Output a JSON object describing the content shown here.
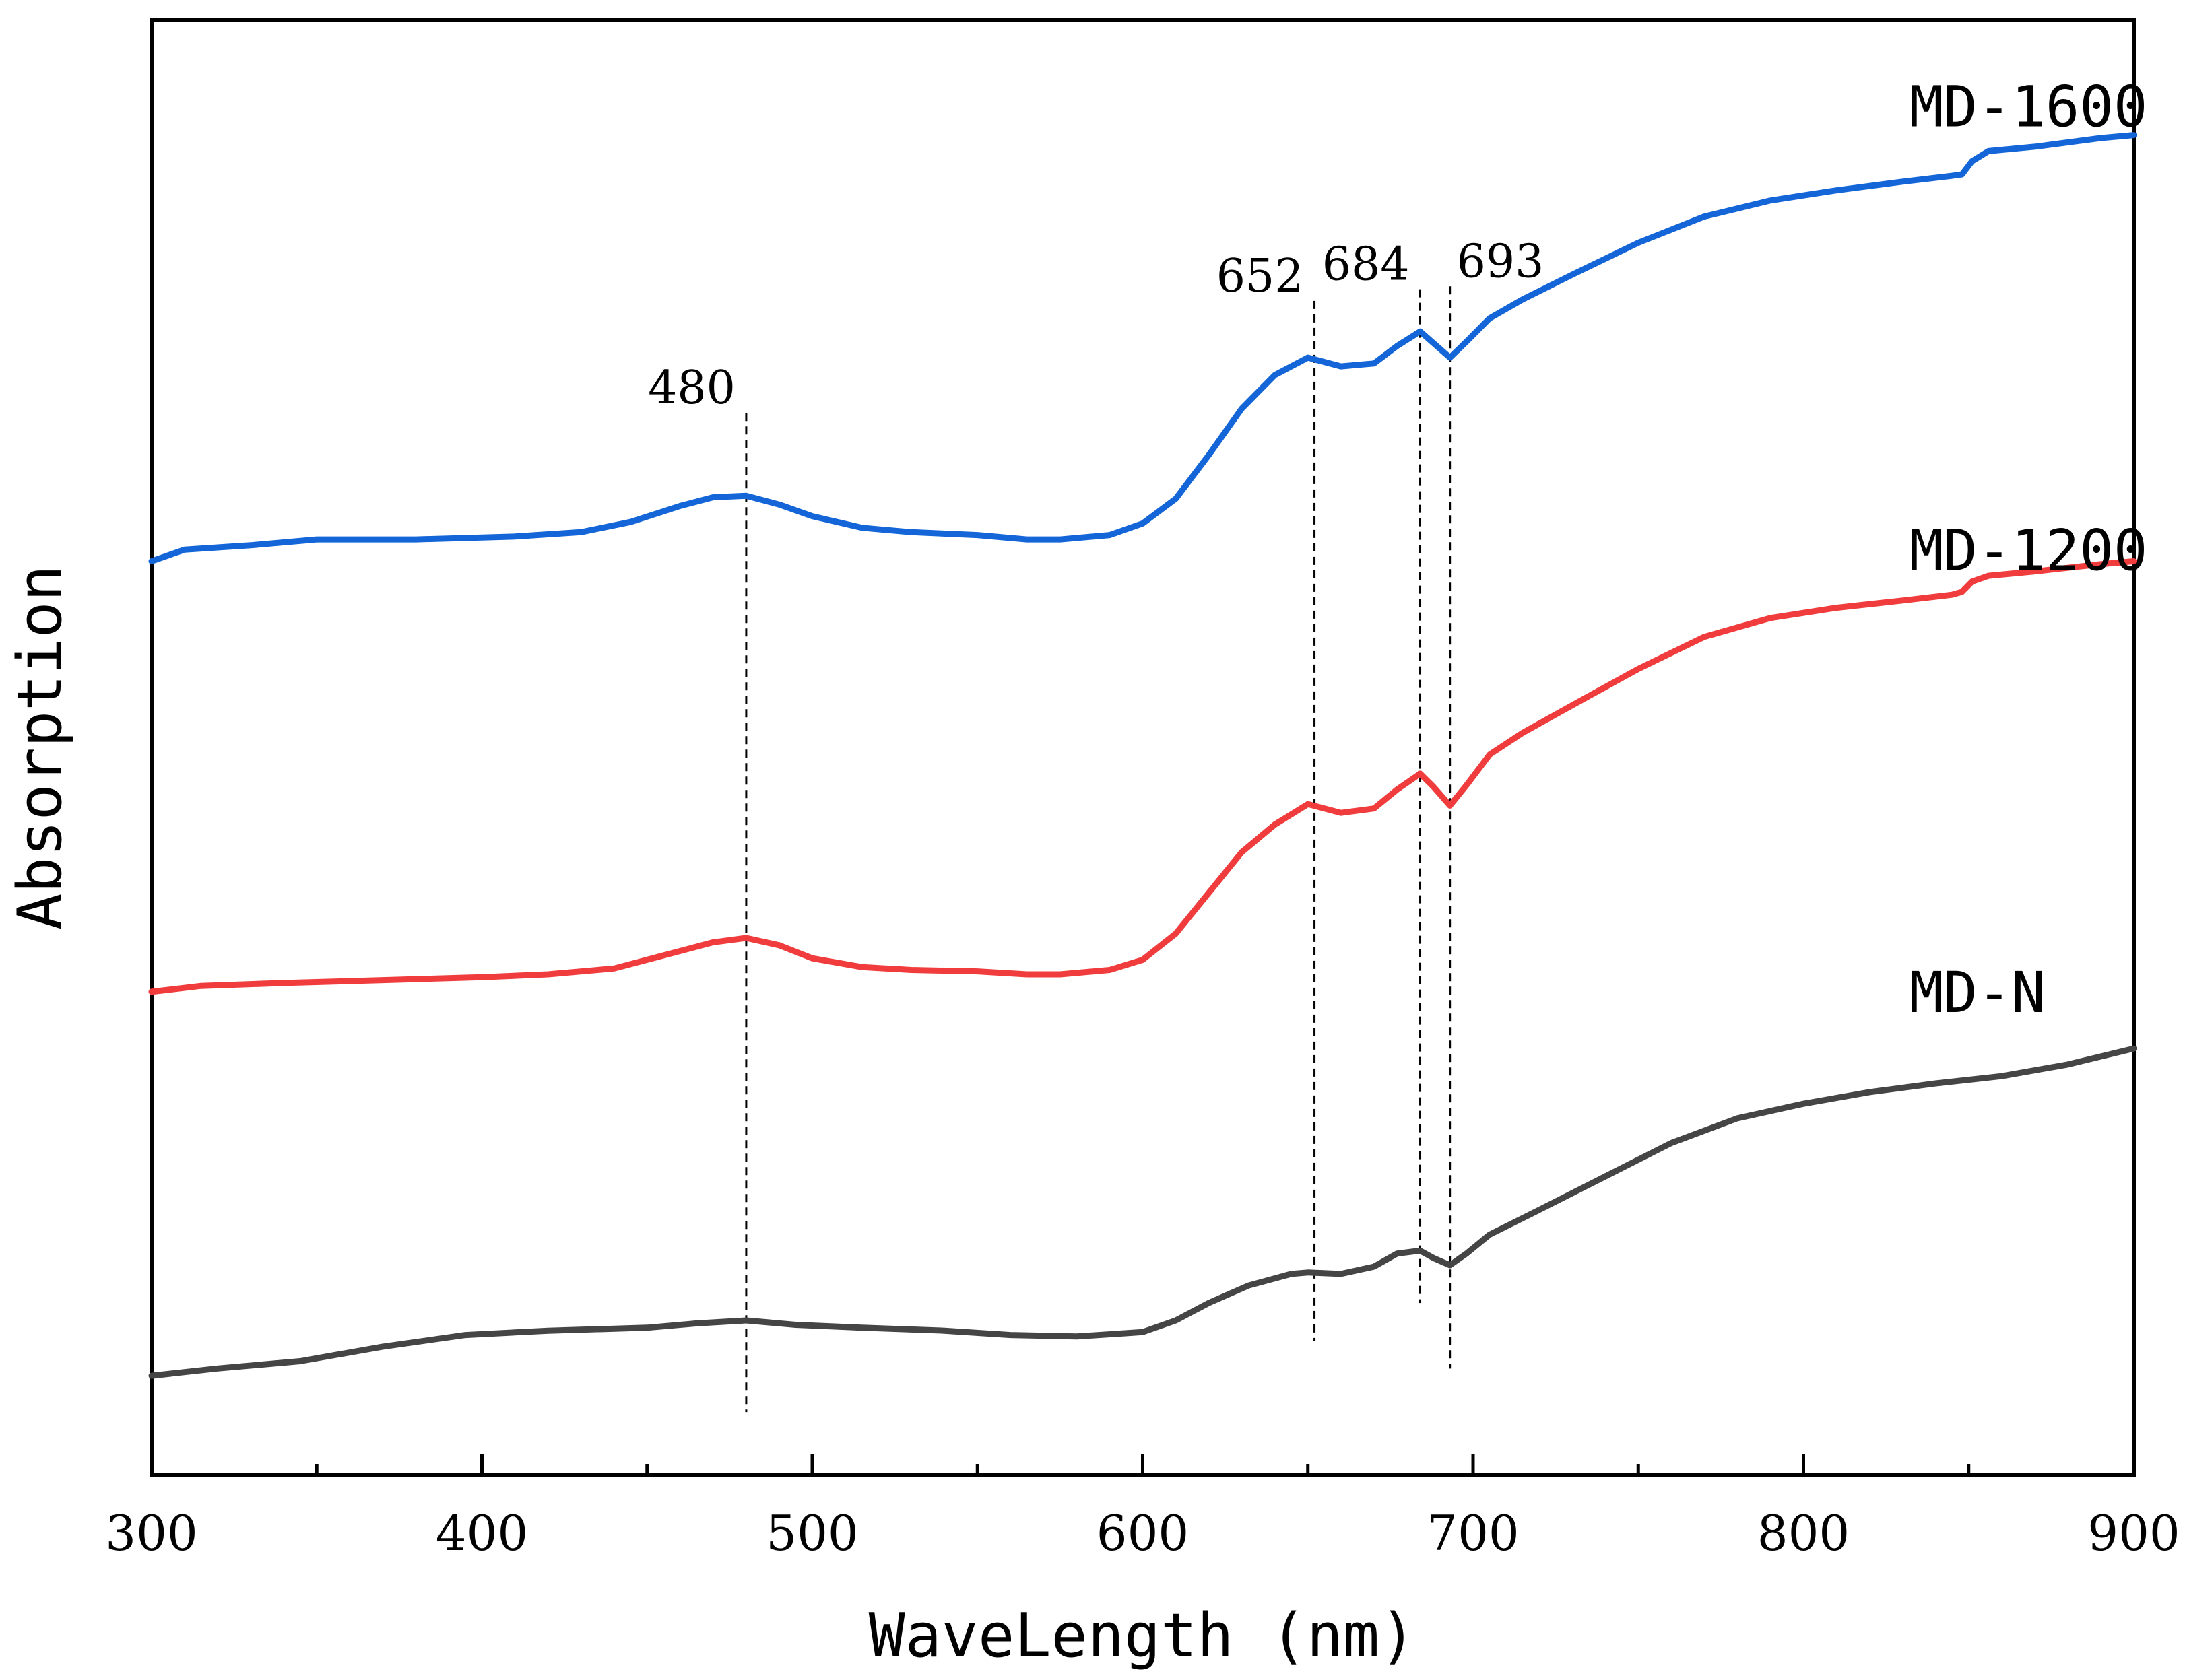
{
  "chart_data": {
    "type": "line",
    "title": "",
    "xlabel": "WaveLength (nm)",
    "ylabel": "Absorption",
    "xlim": [
      300,
      900
    ],
    "ylim": [
      0,
      100
    ],
    "xticks": [
      300,
      400,
      500,
      600,
      700,
      800,
      900
    ],
    "xtick_labels": [
      "300",
      "400",
      "500",
      "600",
      "700",
      "800",
      "900"
    ],
    "grid": false,
    "colors": {
      "MD-1600": "#1466d8",
      "MD-1200": "#f03c3c",
      "MD-N": "#454545"
    },
    "series": [
      {
        "name": "MD-1600",
        "label_x": 832,
        "label_y": 92.7,
        "points": [
          [
            300,
            62.8
          ],
          [
            310,
            63.6
          ],
          [
            330,
            63.9
          ],
          [
            350,
            64.3
          ],
          [
            380,
            64.3
          ],
          [
            410,
            64.5
          ],
          [
            430,
            64.8
          ],
          [
            445,
            65.5
          ],
          [
            460,
            66.6
          ],
          [
            470,
            67.2
          ],
          [
            480,
            67.3
          ],
          [
            490,
            66.7
          ],
          [
            500,
            65.9
          ],
          [
            515,
            65.1
          ],
          [
            530,
            64.8
          ],
          [
            550,
            64.6
          ],
          [
            565,
            64.3
          ],
          [
            575,
            64.3
          ],
          [
            590,
            64.6
          ],
          [
            600,
            65.4
          ],
          [
            610,
            67.1
          ],
          [
            620,
            70.1
          ],
          [
            630,
            73.3
          ],
          [
            640,
            75.6
          ],
          [
            650,
            76.8
          ],
          [
            655,
            76.5
          ],
          [
            660,
            76.2
          ],
          [
            670,
            76.4
          ],
          [
            677,
            77.6
          ],
          [
            684,
            78.6
          ],
          [
            688,
            77.8
          ],
          [
            693,
            76.8
          ],
          [
            698,
            77.9
          ],
          [
            705,
            79.5
          ],
          [
            715,
            80.8
          ],
          [
            730,
            82.5
          ],
          [
            750,
            84.7
          ],
          [
            770,
            86.5
          ],
          [
            790,
            87.6
          ],
          [
            810,
            88.3
          ],
          [
            830,
            88.9
          ],
          [
            845,
            89.3
          ],
          [
            848,
            89.4
          ],
          [
            851,
            90.3
          ],
          [
            856,
            91.0
          ],
          [
            870,
            91.3
          ],
          [
            890,
            91.9
          ],
          [
            900,
            92.1
          ]
        ]
      },
      {
        "name": "MD-1200",
        "label_x": 832,
        "label_y": 62.2,
        "points": [
          [
            300,
            33.2
          ],
          [
            315,
            33.6
          ],
          [
            340,
            33.8
          ],
          [
            370,
            34.0
          ],
          [
            400,
            34.2
          ],
          [
            420,
            34.4
          ],
          [
            440,
            34.8
          ],
          [
            455,
            35.7
          ],
          [
            470,
            36.6
          ],
          [
            480,
            36.9
          ],
          [
            490,
            36.4
          ],
          [
            500,
            35.5
          ],
          [
            515,
            34.9
          ],
          [
            530,
            34.7
          ],
          [
            550,
            34.6
          ],
          [
            565,
            34.4
          ],
          [
            575,
            34.4
          ],
          [
            590,
            34.7
          ],
          [
            600,
            35.4
          ],
          [
            610,
            37.2
          ],
          [
            620,
            40.0
          ],
          [
            630,
            42.8
          ],
          [
            640,
            44.7
          ],
          [
            650,
            46.1
          ],
          [
            655,
            45.8
          ],
          [
            660,
            45.5
          ],
          [
            670,
            45.8
          ],
          [
            677,
            47.1
          ],
          [
            684,
            48.2
          ],
          [
            688,
            47.3
          ],
          [
            693,
            46.0
          ],
          [
            698,
            47.4
          ],
          [
            705,
            49.5
          ],
          [
            715,
            51.0
          ],
          [
            730,
            52.9
          ],
          [
            750,
            55.4
          ],
          [
            770,
            57.6
          ],
          [
            790,
            58.9
          ],
          [
            810,
            59.6
          ],
          [
            830,
            60.1
          ],
          [
            845,
            60.5
          ],
          [
            848,
            60.7
          ],
          [
            851,
            61.4
          ],
          [
            856,
            61.8
          ],
          [
            870,
            62.1
          ],
          [
            890,
            62.6
          ],
          [
            900,
            62.8
          ]
        ]
      },
      {
        "name": "MD-N",
        "label_x": 832,
        "label_y": 31.8,
        "points": [
          [
            300,
            6.8
          ],
          [
            320,
            7.3
          ],
          [
            345,
            7.8
          ],
          [
            370,
            8.8
          ],
          [
            395,
            9.6
          ],
          [
            420,
            9.9
          ],
          [
            450,
            10.1
          ],
          [
            465,
            10.4
          ],
          [
            480,
            10.6
          ],
          [
            495,
            10.3
          ],
          [
            515,
            10.1
          ],
          [
            540,
            9.9
          ],
          [
            560,
            9.6
          ],
          [
            580,
            9.5
          ],
          [
            600,
            9.8
          ],
          [
            610,
            10.6
          ],
          [
            620,
            11.8
          ],
          [
            632,
            13.0
          ],
          [
            645,
            13.8
          ],
          [
            650,
            13.9
          ],
          [
            660,
            13.8
          ],
          [
            670,
            14.3
          ],
          [
            677,
            15.2
          ],
          [
            684,
            15.4
          ],
          [
            688,
            14.9
          ],
          [
            693,
            14.4
          ],
          [
            698,
            15.2
          ],
          [
            705,
            16.5
          ],
          [
            720,
            18.2
          ],
          [
            740,
            20.5
          ],
          [
            760,
            22.8
          ],
          [
            780,
            24.5
          ],
          [
            800,
            25.5
          ],
          [
            820,
            26.3
          ],
          [
            840,
            26.9
          ],
          [
            860,
            27.4
          ],
          [
            880,
            28.2
          ],
          [
            900,
            29.3
          ]
        ]
      }
    ],
    "annotations": [
      {
        "label": "480",
        "x": 480,
        "y_top": 73.0,
        "y_bottom": 4.3,
        "label_pos": "left"
      },
      {
        "label": "652",
        "x": 652,
        "y_top": 80.7,
        "y_bottom": 9.2,
        "label_pos": "left"
      },
      {
        "label": "684",
        "x": 684,
        "y_top": 81.5,
        "y_bottom": 11.8,
        "label_pos": "left"
      },
      {
        "label": "693",
        "x": 693,
        "y_top": 81.7,
        "y_bottom": 7.3,
        "label_pos": "right"
      }
    ]
  }
}
